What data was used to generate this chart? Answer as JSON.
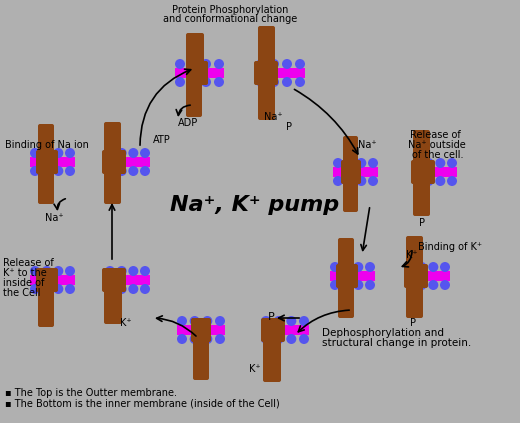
{
  "bg_color": "#b0b0b0",
  "title": "Na⁺, K⁺ pump",
  "footnote1": "▪ The Top is the Outter membrane.",
  "footnote2": "▪ The Bottom is the inner membrane (inside of the Cell)",
  "membrane_blue": "#5555ee",
  "membrane_magenta": "#ee00ee",
  "protein_brown": "#8B4513",
  "text_color": "#000000",
  "title_fontsize": 16,
  "label_fontsize": 7
}
